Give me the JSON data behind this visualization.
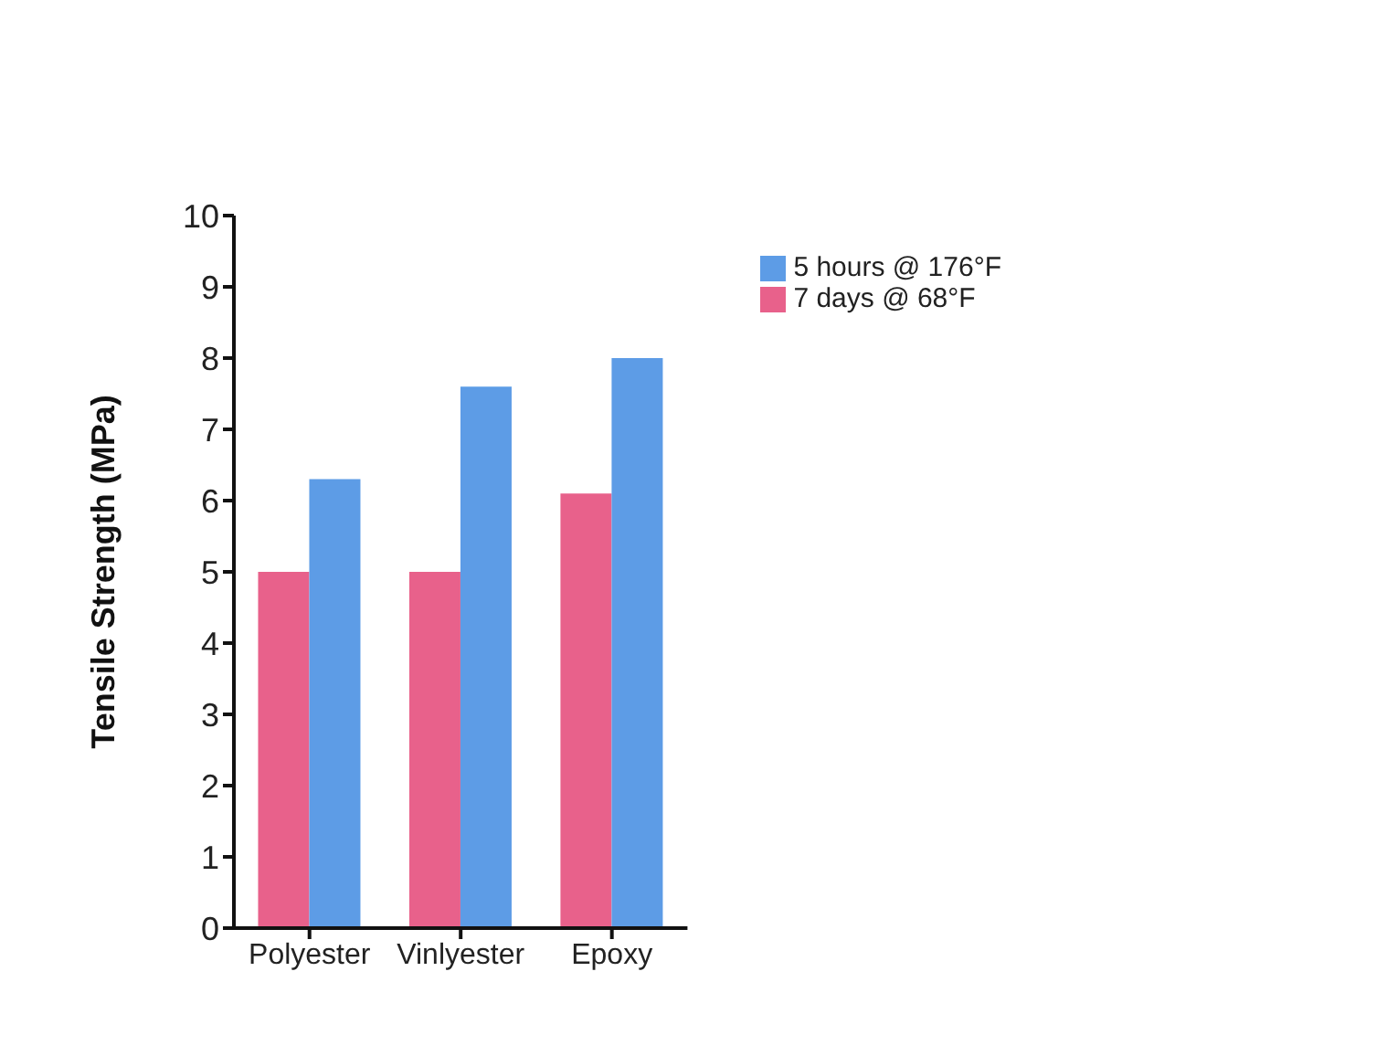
{
  "chart_data": {
    "type": "bar",
    "ylabel": "Tensile Strength (MPa)",
    "categories": [
      "Polyester",
      "Vinlyester",
      "Epoxy"
    ],
    "series": [
      {
        "name": "7 days @ 68°F",
        "color": "#e8618b",
        "values": [
          5.0,
          5.0,
          6.1
        ]
      },
      {
        "name": "5 hours @ 176°F",
        "color": "#5d9ce6",
        "values": [
          6.3,
          7.6,
          8.0
        ]
      }
    ],
    "ylim": [
      0,
      10
    ],
    "yticks": [
      0,
      1,
      2,
      3,
      4,
      5,
      6,
      7,
      8,
      9,
      10
    ],
    "grid": false,
    "legend": "top right"
  }
}
